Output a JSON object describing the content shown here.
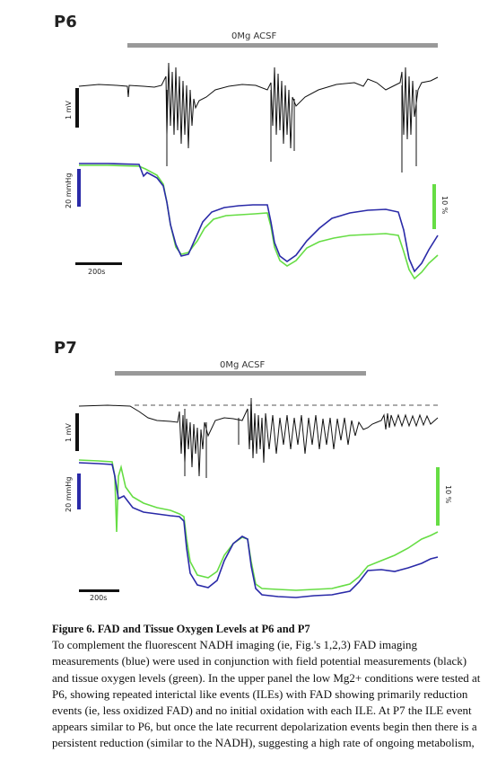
{
  "p6": {
    "label": "P6",
    "condition": "0Mg ACSF",
    "mv_label": "1 mV",
    "mmhg_label": "20 mmHg",
    "pct_label": "10 %",
    "time_label": "200s"
  },
  "p7": {
    "label": "P7",
    "condition": "0Mg ACSF",
    "mv_label": "1 mV",
    "mmhg_label": "20 mmHg",
    "pct_label": "10 %",
    "time_label": "200s"
  },
  "colors": {
    "fad": "#2a2aa8",
    "oxygen": "#66dd44",
    "field": "#111111",
    "bar": "#999999"
  },
  "caption": {
    "title": "Figure 6. FAD and Tissue Oxygen Levels at P6 and P7",
    "body": "To complement the fluorescent NADH imaging (ie, Fig.'s 1,2,3) FAD imaging measurements (blue) were used in conjunction with field potential measurements (black) and tissue oxygen levels (green). In the upper panel the low Mg2+ conditions were tested at P6, showing repeated interictal like events (ILEs) with FAD showing primarily reduction events (ie, less oxidized FAD) and no initial oxidation with each ILE. At P7 the ILE event appears similar to P6, but once the late recurrent depolarization events begin then there is a persistent reduction (similar to the NADH), suggesting a high rate of ongoing metabolism,"
  }
}
